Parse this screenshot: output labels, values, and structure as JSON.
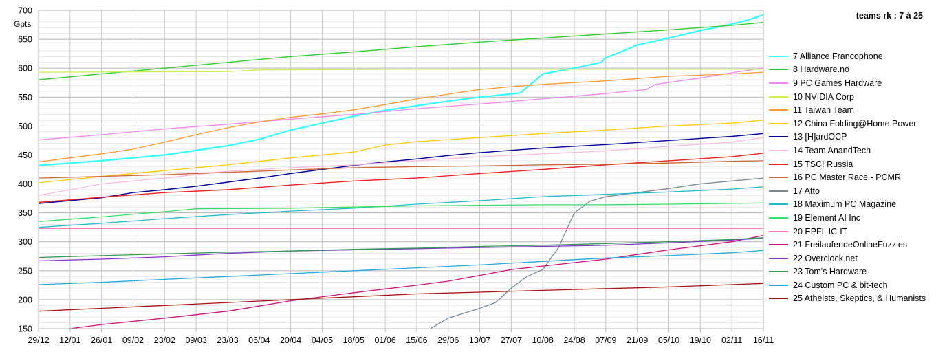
{
  "chart_data": {
    "type": "line",
    "title": "teams rk : 7 à 25",
    "ylabel": "Gpts",
    "xlabel": "",
    "ylim": [
      150,
      700
    ],
    "yticks": [
      150,
      200,
      250,
      300,
      350,
      400,
      450,
      500,
      550,
      600,
      650,
      700
    ],
    "x_tick_labels": [
      "29/12",
      "12/01",
      "26/01",
      "09/02",
      "23/02",
      "09/03",
      "23/03",
      "06/04",
      "20/04",
      "04/05",
      "18/05",
      "01/06",
      "15/06",
      "29/06",
      "13/07",
      "27/07",
      "10/08",
      "24/08",
      "07/09",
      "21/09",
      "05/10",
      "19/10",
      "02/11",
      "16/11"
    ],
    "x_days": [
      0,
      14,
      28,
      42,
      56,
      70,
      84,
      98,
      112,
      126,
      140,
      154,
      168,
      182,
      196,
      210,
      224,
      238,
      252,
      266,
      280,
      294,
      308,
      322
    ],
    "grid": true,
    "legend_position": "right",
    "series": [
      {
        "name": "7 Alliance Francophone",
        "color": "#33ffff",
        "width": 2.2,
        "points": [
          [
            0,
            432
          ],
          [
            28,
            440
          ],
          [
            56,
            450
          ],
          [
            84,
            466
          ],
          [
            98,
            477
          ],
          [
            112,
            493
          ],
          [
            126,
            505
          ],
          [
            140,
            517
          ],
          [
            154,
            527
          ],
          [
            168,
            535
          ],
          [
            182,
            543
          ],
          [
            196,
            550
          ],
          [
            214,
            557
          ],
          [
            224,
            590
          ],
          [
            238,
            600
          ],
          [
            250,
            610
          ],
          [
            252,
            618
          ],
          [
            260,
            630
          ],
          [
            266,
            640
          ],
          [
            280,
            652
          ],
          [
            294,
            665
          ],
          [
            308,
            676
          ],
          [
            315,
            683
          ],
          [
            322,
            692
          ]
        ]
      },
      {
        "name": "8 Hardware.no",
        "color": "#33cc33",
        "width": 1.4,
        "points": [
          [
            0,
            580
          ],
          [
            28,
            590
          ],
          [
            56,
            600
          ],
          [
            84,
            610
          ],
          [
            112,
            620
          ],
          [
            140,
            628
          ],
          [
            168,
            637
          ],
          [
            196,
            645
          ],
          [
            224,
            652
          ],
          [
            252,
            659
          ],
          [
            280,
            666
          ],
          [
            308,
            674
          ],
          [
            322,
            679
          ]
        ]
      },
      {
        "name": "9 PC Games Hardware",
        "color": "#ee88ee",
        "width": 1.3,
        "points": [
          [
            0,
            476
          ],
          [
            28,
            485
          ],
          [
            56,
            495
          ],
          [
            84,
            503
          ],
          [
            112,
            512
          ],
          [
            140,
            520
          ],
          [
            168,
            530
          ],
          [
            196,
            538
          ],
          [
            224,
            547
          ],
          [
            252,
            556
          ],
          [
            270,
            563
          ],
          [
            274,
            572
          ],
          [
            294,
            583
          ],
          [
            308,
            592
          ],
          [
            322,
            600
          ]
        ]
      },
      {
        "name": "10 NVIDIA Corp",
        "color": "#ccee55",
        "width": 1.3,
        "points": [
          [
            0,
            593
          ],
          [
            84,
            594
          ],
          [
            98,
            597
          ],
          [
            168,
            598
          ],
          [
            224,
            598
          ],
          [
            322,
            598
          ]
        ]
      },
      {
        "name": "11 Taiwan Team",
        "color": "#ff9933",
        "width": 1.3,
        "points": [
          [
            0,
            438
          ],
          [
            14,
            445
          ],
          [
            28,
            452
          ],
          [
            42,
            460
          ],
          [
            56,
            472
          ],
          [
            70,
            485
          ],
          [
            84,
            497
          ],
          [
            98,
            507
          ],
          [
            112,
            515
          ],
          [
            126,
            521
          ],
          [
            140,
            528
          ],
          [
            154,
            537
          ],
          [
            168,
            547
          ],
          [
            182,
            555
          ],
          [
            196,
            563
          ],
          [
            210,
            568
          ],
          [
            224,
            572
          ],
          [
            238,
            575
          ],
          [
            252,
            578
          ],
          [
            266,
            582
          ],
          [
            280,
            586
          ],
          [
            308,
            590
          ],
          [
            322,
            593
          ]
        ]
      },
      {
        "name": "12 China Folding@Home Power",
        "color": "#ffcc00",
        "width": 1.3,
        "points": [
          [
            0,
            402
          ],
          [
            28,
            413
          ],
          [
            56,
            423
          ],
          [
            84,
            433
          ],
          [
            112,
            445
          ],
          [
            140,
            455
          ],
          [
            154,
            467
          ],
          [
            168,
            473
          ],
          [
            196,
            480
          ],
          [
            224,
            487
          ],
          [
            252,
            493
          ],
          [
            280,
            500
          ],
          [
            308,
            505
          ],
          [
            322,
            510
          ]
        ]
      },
      {
        "name": "13 [H]ardOCP",
        "color": "#000099",
        "width": 1.4,
        "points": [
          [
            0,
            366
          ],
          [
            28,
            376
          ],
          [
            42,
            385
          ],
          [
            56,
            390
          ],
          [
            70,
            396
          ],
          [
            84,
            403
          ],
          [
            98,
            410
          ],
          [
            112,
            418
          ],
          [
            126,
            425
          ],
          [
            140,
            432
          ],
          [
            154,
            438
          ],
          [
            168,
            443
          ],
          [
            182,
            449
          ],
          [
            196,
            454
          ],
          [
            224,
            462
          ],
          [
            252,
            468
          ],
          [
            280,
            475
          ],
          [
            308,
            482
          ],
          [
            322,
            487
          ]
        ]
      },
      {
        "name": "14 Team AnandTech",
        "color": "#ffbbdd",
        "width": 1.3,
        "points": [
          [
            0,
            380
          ],
          [
            28,
            400
          ],
          [
            56,
            410
          ],
          [
            84,
            422
          ],
          [
            112,
            428
          ],
          [
            140,
            433
          ],
          [
            168,
            440
          ],
          [
            196,
            447
          ],
          [
            224,
            452
          ],
          [
            252,
            457
          ],
          [
            280,
            465
          ],
          [
            308,
            472
          ],
          [
            322,
            480
          ]
        ]
      },
      {
        "name": "15 TSC! Russia",
        "color": "#ee2222",
        "width": 1.4,
        "points": [
          [
            0,
            368
          ],
          [
            28,
            377
          ],
          [
            56,
            385
          ],
          [
            84,
            390
          ],
          [
            112,
            398
          ],
          [
            140,
            405
          ],
          [
            168,
            410
          ],
          [
            196,
            418
          ],
          [
            224,
            425
          ],
          [
            252,
            433
          ],
          [
            280,
            440
          ],
          [
            308,
            447
          ],
          [
            322,
            453
          ]
        ]
      },
      {
        "name": "16 PC Master Race - PCMR",
        "color": "#cc6633",
        "width": 1.3,
        "points": [
          [
            0,
            410
          ],
          [
            28,
            413
          ],
          [
            56,
            416
          ],
          [
            84,
            420
          ],
          [
            112,
            424
          ],
          [
            140,
            428
          ],
          [
            168,
            430
          ],
          [
            196,
            431
          ],
          [
            224,
            433
          ],
          [
            252,
            434
          ],
          [
            280,
            436
          ],
          [
            308,
            439
          ],
          [
            322,
            440
          ]
        ]
      },
      {
        "name": "17 Atto",
        "color": "#778899",
        "width": 1.3,
        "points": [
          [
            174,
            150
          ],
          [
            182,
            168
          ],
          [
            196,
            185
          ],
          [
            203,
            195
          ],
          [
            210,
            220
          ],
          [
            217,
            240
          ],
          [
            224,
            252
          ],
          [
            231,
            290
          ],
          [
            238,
            350
          ],
          [
            245,
            370
          ],
          [
            252,
            378
          ],
          [
            266,
            385
          ],
          [
            280,
            392
          ],
          [
            294,
            400
          ],
          [
            308,
            405
          ],
          [
            322,
            410
          ]
        ]
      },
      {
        "name": "18 Maximum PC Magazine",
        "color": "#22bbcc",
        "width": 1.3,
        "points": [
          [
            0,
            325
          ],
          [
            28,
            332
          ],
          [
            56,
            340
          ],
          [
            84,
            347
          ],
          [
            112,
            353
          ],
          [
            140,
            358
          ],
          [
            168,
            365
          ],
          [
            196,
            371
          ],
          [
            224,
            378
          ],
          [
            252,
            382
          ],
          [
            280,
            386
          ],
          [
            308,
            391
          ],
          [
            322,
            395
          ]
        ]
      },
      {
        "name": "19 Element AI Inc",
        "color": "#33dd66",
        "width": 1.3,
        "points": [
          [
            0,
            335
          ],
          [
            28,
            343
          ],
          [
            56,
            352
          ],
          [
            70,
            357
          ],
          [
            112,
            358
          ],
          [
            140,
            360
          ],
          [
            168,
            362
          ],
          [
            196,
            363
          ],
          [
            224,
            364
          ],
          [
            252,
            364
          ],
          [
            280,
            365
          ],
          [
            322,
            367
          ]
        ]
      },
      {
        "name": "20 EPFL IC-IT",
        "color": "#ff77bb",
        "width": 1.3,
        "points": [
          [
            0,
            323
          ],
          [
            322,
            323
          ]
        ]
      },
      {
        "name": "21 FreilaufendeOnlineFuzzies",
        "color": "#cc1177",
        "width": 1.3,
        "points": [
          [
            14,
            150
          ],
          [
            28,
            157
          ],
          [
            56,
            168
          ],
          [
            84,
            180
          ],
          [
            112,
            198
          ],
          [
            140,
            212
          ],
          [
            168,
            225
          ],
          [
            182,
            232
          ],
          [
            196,
            242
          ],
          [
            210,
            252
          ],
          [
            224,
            258
          ],
          [
            252,
            270
          ],
          [
            266,
            278
          ],
          [
            280,
            286
          ],
          [
            294,
            293
          ],
          [
            308,
            300
          ],
          [
            322,
            311
          ]
        ]
      },
      {
        "name": "22 Overclock.net",
        "color": "#8833cc",
        "width": 1.3,
        "points": [
          [
            0,
            267
          ],
          [
            28,
            270
          ],
          [
            56,
            274
          ],
          [
            84,
            280
          ],
          [
            112,
            284
          ],
          [
            140,
            286
          ],
          [
            168,
            288
          ],
          [
            196,
            290
          ],
          [
            224,
            292
          ],
          [
            252,
            294
          ],
          [
            280,
            298
          ],
          [
            308,
            303
          ],
          [
            322,
            306
          ]
        ]
      },
      {
        "name": "23 Tom's Hardware",
        "color": "#339955",
        "width": 1.3,
        "points": [
          [
            0,
            273
          ],
          [
            28,
            276
          ],
          [
            56,
            279
          ],
          [
            84,
            282
          ],
          [
            112,
            284
          ],
          [
            140,
            287
          ],
          [
            168,
            289
          ],
          [
            196,
            292
          ],
          [
            224,
            294
          ],
          [
            252,
            297
          ],
          [
            280,
            300
          ],
          [
            308,
            304
          ],
          [
            322,
            307
          ]
        ]
      },
      {
        "name": "24 Custom PC & bit-tech",
        "color": "#22aadd",
        "width": 1.3,
        "points": [
          [
            0,
            226
          ],
          [
            28,
            230
          ],
          [
            56,
            235
          ],
          [
            84,
            240
          ],
          [
            112,
            245
          ],
          [
            140,
            250
          ],
          [
            168,
            255
          ],
          [
            196,
            260
          ],
          [
            224,
            266
          ],
          [
            252,
            272
          ],
          [
            280,
            276
          ],
          [
            308,
            281
          ],
          [
            322,
            285
          ]
        ]
      },
      {
        "name": "25 Atheists, Skeptics, & Humanists",
        "color": "#aa1111",
        "width": 1.3,
        "points": [
          [
            0,
            180
          ],
          [
            28,
            185
          ],
          [
            56,
            190
          ],
          [
            84,
            195
          ],
          [
            112,
            200
          ],
          [
            140,
            205
          ],
          [
            168,
            210
          ],
          [
            196,
            213
          ],
          [
            224,
            216
          ],
          [
            252,
            219
          ],
          [
            280,
            222
          ],
          [
            308,
            226
          ],
          [
            322,
            228
          ]
        ]
      }
    ]
  }
}
